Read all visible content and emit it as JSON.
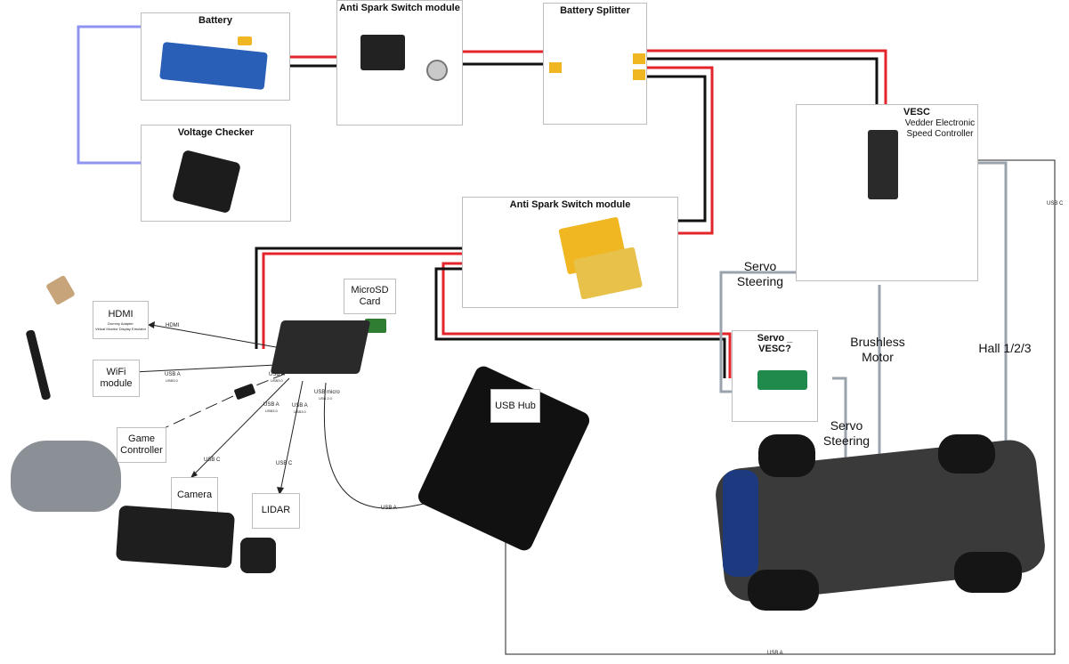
{
  "boxes": {
    "battery": "Battery",
    "anti_spark_top": "Anti Spark Switch module",
    "battery_splitter": "Battery Splitter",
    "voltage_checker": "Voltage Checker",
    "anti_spark_mid": "Anti Spark Switch module",
    "vesc_title": "VESC",
    "vesc_sub1": "Vedder Electronic",
    "vesc_sub2": "Speed Controller",
    "microsd_line1": "MicroSD",
    "microsd_line2": "Card",
    "hdmi": "HDMI",
    "hdmi_sub1": "Dummy Adapter",
    "hdmi_sub2": "Virtual Monitor Display Emulator",
    "wifi_line1": "WiFi",
    "wifi_line2": "module",
    "game_line1": "Game",
    "game_line2": "Controller",
    "camera": "Camera",
    "lidar": "LIDAR",
    "usb_hub": "USB Hub",
    "servo_vesc_line1": "Servo _",
    "servo_vesc_line2": "VESC?"
  },
  "labels": {
    "servo_steering_top_1": "Servo",
    "servo_steering_top_2": "Steering",
    "servo_steering_bottom_1": "Servo",
    "servo_steering_bottom_2": "Steering",
    "brushless_1": "Brushless",
    "brushless_2": "Motor",
    "hall": "Hall 1/2/3"
  },
  "wire_labels": {
    "hdmi": "HDMI",
    "usb_a_1": "USB A",
    "usb_3_1": "USB3.0",
    "usb_a_2": "USB A",
    "usb_3_2": "USB3.0",
    "usb_a_3": "USB A",
    "usb_3_3": "USB3.0",
    "usb_a_4": "USB A",
    "usb_3_4": "USB3.0",
    "usb_micro": "USB micro",
    "usb_2": "USB 2.0",
    "usb_c_cam": "USB C",
    "usb_c_lidar": "USB C",
    "usb_a_hub": "USB A",
    "usb_c_right": "USB C",
    "usb_a_bottom": "USB A"
  },
  "colors": {
    "red": "#e3242b",
    "black": "#111111",
    "grey": "#9aa3ad",
    "lavender": "#8f94f0",
    "box_border": "#bdbdbd"
  }
}
